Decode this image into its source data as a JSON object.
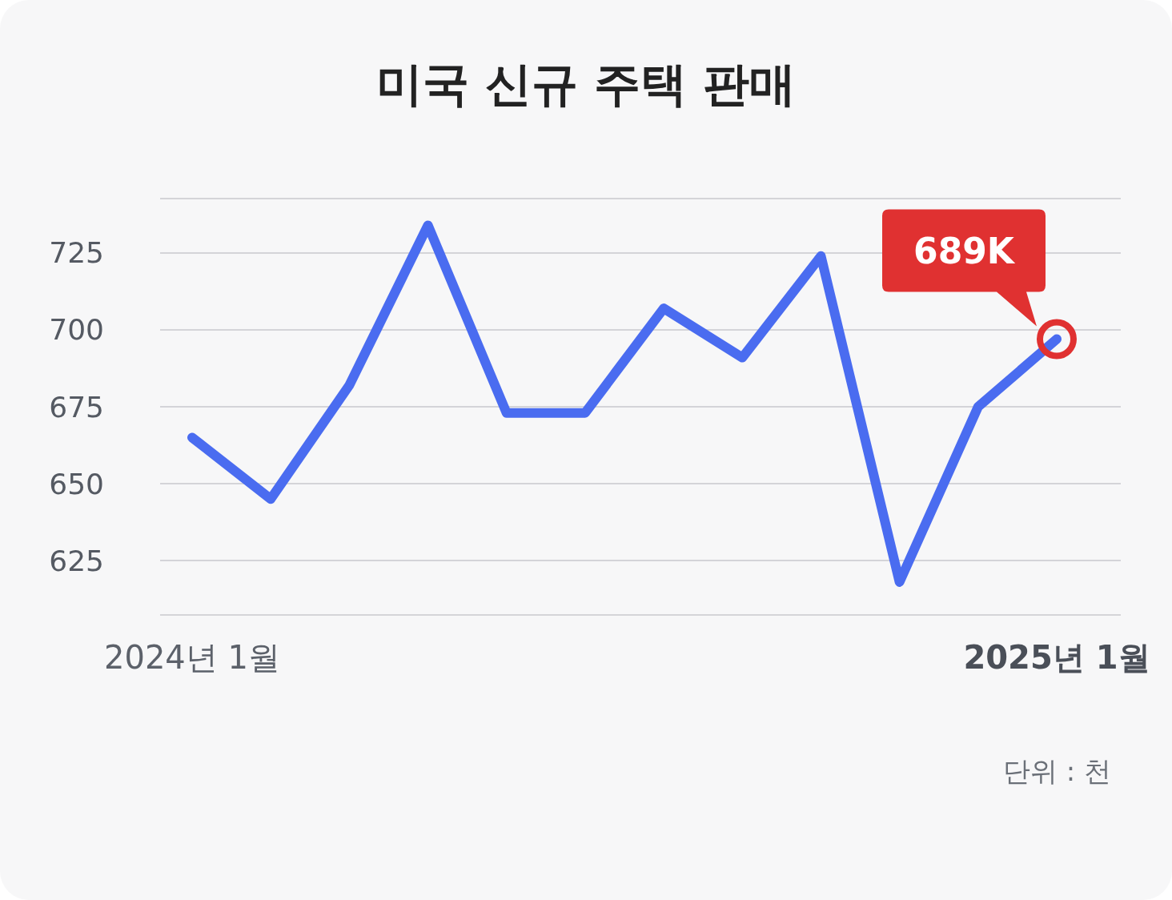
{
  "chart_data": {
    "type": "line",
    "title": "미국 신규 주택 판매",
    "categories": [
      "2024년 1월",
      null,
      null,
      null,
      null,
      null,
      null,
      null,
      null,
      null,
      null,
      "2025년 1월"
    ],
    "series": [
      {
        "color": "#4a6cf0",
        "values": [
          665,
          645,
          682,
          734,
          673,
          673,
          707,
          691,
          724,
          618,
          675,
          697
        ]
      }
    ],
    "ylim": [
      607.3,
      742.7
    ],
    "yticks": [
      625,
      650,
      675,
      700,
      725
    ],
    "grid": "y",
    "marker": "none",
    "line_style": "solid",
    "annotations": [
      {
        "text": "689K",
        "x": "2025년 1월",
        "y": 697
      },
      "단위 : 천"
    ]
  }
}
